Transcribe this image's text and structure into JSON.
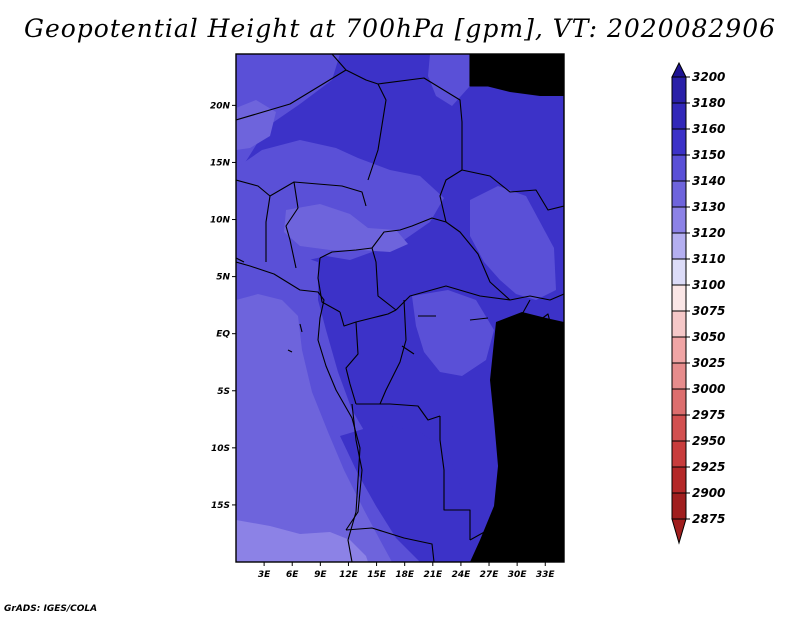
{
  "title": "Geopotential Height at 700hPa [gpm], VT: 2020082906",
  "footer": "GrADS: IGES/COLA",
  "map": {
    "lon_range": [
      0,
      35
    ],
    "lat_range": [
      -20,
      24.5
    ],
    "lon_ticks": [
      {
        "value": 3,
        "label": "3E"
      },
      {
        "value": 6,
        "label": "6E"
      },
      {
        "value": 9,
        "label": "9E"
      },
      {
        "value": 12,
        "label": "12E"
      },
      {
        "value": 15,
        "label": "15E"
      },
      {
        "value": 18,
        "label": "18E"
      },
      {
        "value": 21,
        "label": "21E"
      },
      {
        "value": 24,
        "label": "24E"
      },
      {
        "value": 27,
        "label": "27E"
      },
      {
        "value": 30,
        "label": "30E"
      },
      {
        "value": 33,
        "label": "33E"
      }
    ],
    "lat_ticks": [
      {
        "value": 20,
        "label": "20N"
      },
      {
        "value": 15,
        "label": "15N"
      },
      {
        "value": 10,
        "label": "10N"
      },
      {
        "value": 5,
        "label": "5N"
      },
      {
        "value": 0,
        "label": "EQ"
      },
      {
        "value": -5,
        "label": "5S"
      },
      {
        "value": -10,
        "label": "10S"
      },
      {
        "value": -15,
        "label": "15S"
      }
    ],
    "field_colors": {
      "3150": "#3c32c8",
      "3140": "#5a50d7",
      "3130": "#6e64dc",
      "3120": "#8c82e6"
    }
  },
  "colorbar": {
    "levels": [
      {
        "label": "3200",
        "color": "#1e1492"
      },
      {
        "label": "3180",
        "color": "#2a20a8"
      },
      {
        "label": "3160",
        "color": "#3228b9"
      },
      {
        "label": "3150",
        "color": "#3c32c8"
      },
      {
        "label": "3140",
        "color": "#5a50d7"
      },
      {
        "label": "3130",
        "color": "#6e64dc"
      },
      {
        "label": "3120",
        "color": "#8c82e6"
      },
      {
        "label": "3110",
        "color": "#b4aff0"
      },
      {
        "label": "3100",
        "color": "#dcdcf8"
      },
      {
        "label": "3075",
        "color": "#fae6e6"
      },
      {
        "label": "3050",
        "color": "#f5c8c8"
      },
      {
        "label": "3025",
        "color": "#f0a5a5"
      },
      {
        "label": "3000",
        "color": "#e68c8c"
      },
      {
        "label": "2975",
        "color": "#dc6e6e"
      },
      {
        "label": "2950",
        "color": "#d25050"
      },
      {
        "label": "2925",
        "color": "#c83c3c"
      },
      {
        "label": "2900",
        "color": "#b42828"
      },
      {
        "label": "2875",
        "color": "#a01e1e"
      }
    ],
    "top_arrow_color": "#1e1492",
    "bottom_arrow_color": "#a01e1e"
  }
}
